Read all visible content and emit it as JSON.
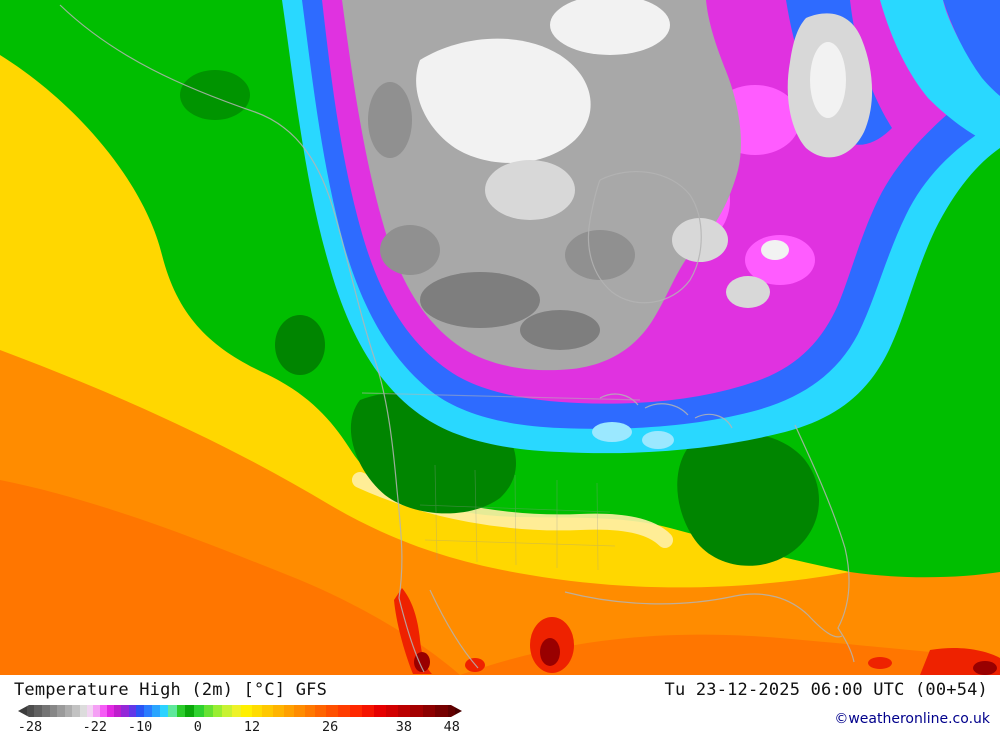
{
  "footer": {
    "title": "Temperature High (2m) [°C] GFS",
    "timestamp": "Tu 23-12-2025 06:00 UTC (00+54)",
    "copyright": "©weatheronline.co.uk",
    "legend": {
      "unit": "°C",
      "ticks": [
        {
          "label": "-28",
          "pos": 2.7
        },
        {
          "label": "-22",
          "pos": 17.3
        },
        {
          "label": "-10",
          "pos": 27.5
        },
        {
          "label": "0",
          "pos": 40.5
        },
        {
          "label": "12",
          "pos": 52.7
        },
        {
          "label": "26",
          "pos": 70.3
        },
        {
          "label": "38",
          "pos": 86.9
        },
        {
          "label": "48",
          "pos": 97.7
        }
      ],
      "segments": [
        [
          "#3C3C3C",
          2.0
        ],
        [
          "#4E4E4E",
          1.7
        ],
        [
          "#616161",
          1.7
        ],
        [
          "#747474",
          1.7
        ],
        [
          "#878787",
          1.7
        ],
        [
          "#9A9A9A",
          1.7
        ],
        [
          "#ADADAD",
          1.7
        ],
        [
          "#C2C2C2",
          1.7
        ],
        [
          "#DCDCDC",
          1.6
        ],
        [
          "#F2D4F2",
          1.5
        ],
        [
          "#F5A0F5",
          1.5
        ],
        [
          "#F55CF5",
          1.6
        ],
        [
          "#E228E2",
          1.6
        ],
        [
          "#BE1ECC",
          1.6
        ],
        [
          "#9428D8",
          1.6
        ],
        [
          "#6238E8",
          1.6
        ],
        [
          "#2B55F5",
          1.8
        ],
        [
          "#2B7CFF",
          1.8
        ],
        [
          "#2BA5FF",
          1.8
        ],
        [
          "#2BD2FF",
          1.9
        ],
        [
          "#5FE89B",
          1.9
        ],
        [
          "#2BCC2B",
          2.0
        ],
        [
          "#0AA80A",
          2.0
        ],
        [
          "#2FD22F",
          2.1
        ],
        [
          "#66E232",
          2.1
        ],
        [
          "#99EE32",
          2.1
        ],
        [
          "#C8F232",
          2.1
        ],
        [
          "#EEF228",
          2.2
        ],
        [
          "#FFF000",
          2.3
        ],
        [
          "#FFDC00",
          2.4
        ],
        [
          "#FFC800",
          2.4
        ],
        [
          "#FFB400",
          2.4
        ],
        [
          "#FFA000",
          2.4
        ],
        [
          "#FF8C00",
          2.4
        ],
        [
          "#FF7800",
          2.4
        ],
        [
          "#FF6400",
          2.4
        ],
        [
          "#FF5000",
          2.7
        ],
        [
          "#FF3C00",
          2.7
        ],
        [
          "#FF2800",
          2.7
        ],
        [
          "#F51400",
          2.7
        ],
        [
          "#E60000",
          2.7
        ],
        [
          "#D20000",
          2.7
        ],
        [
          "#BB0000",
          2.8
        ],
        [
          "#A40000",
          2.8
        ],
        [
          "#8D0000",
          2.8
        ],
        [
          "#760000",
          2.8
        ],
        [
          "#610000",
          1.6
        ],
        [
          "#4A0000",
          1.6
        ]
      ]
    }
  },
  "map": {
    "palette": {
      "orange": "#FF8C00",
      "orangeDeep": "#FF7600",
      "yellow": "#FFD700",
      "cream": "#FFEFA6",
      "green": "#00BE00",
      "darkGreen": "#008500",
      "cyan": "#29D8FF",
      "paleCyan": "#9BE8FF",
      "blue": "#2E6BFF",
      "magenta": "#E032E0",
      "brightMagenta": "#FF5CFF",
      "grayCore": "#A8A8A8",
      "grayLight": "#D8D8D8",
      "grayDark": "#7E7E7E",
      "grayMid": "#909090",
      "white": "#F2F2F2",
      "red": "#EE2200",
      "darkRed": "#990000",
      "coast": "#B4B4B4"
    }
  }
}
